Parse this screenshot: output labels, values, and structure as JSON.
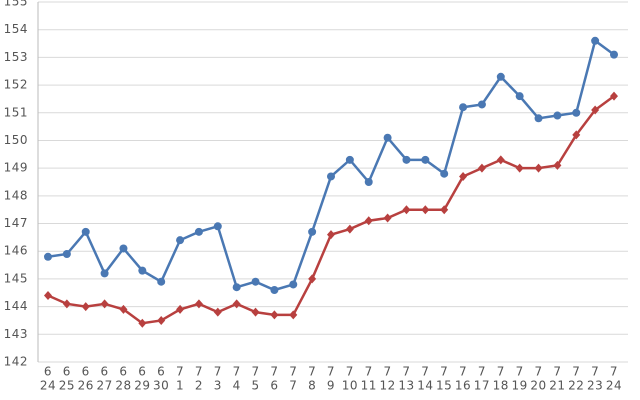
{
  "chart_data": {
    "type": "line",
    "categories": [
      [
        "6",
        "24"
      ],
      [
        "6",
        "25"
      ],
      [
        "6",
        "26"
      ],
      [
        "6",
        "27"
      ],
      [
        "6",
        "28"
      ],
      [
        "6",
        "29"
      ],
      [
        "6",
        "30"
      ],
      [
        "7",
        "1"
      ],
      [
        "7",
        "2"
      ],
      [
        "7",
        "3"
      ],
      [
        "7",
        "4"
      ],
      [
        "7",
        "5"
      ],
      [
        "7",
        "6"
      ],
      [
        "7",
        "7"
      ],
      [
        "7",
        "8"
      ],
      [
        "7",
        "9"
      ],
      [
        "7",
        "10"
      ],
      [
        "7",
        "11"
      ],
      [
        "7",
        "12"
      ],
      [
        "7",
        "13"
      ],
      [
        "7",
        "14"
      ],
      [
        "7",
        "15"
      ],
      [
        "7",
        "16"
      ],
      [
        "7",
        "17"
      ],
      [
        "7",
        "18"
      ],
      [
        "7",
        "19"
      ],
      [
        "7",
        "20"
      ],
      [
        "7",
        "21"
      ],
      [
        "7",
        "22"
      ],
      [
        "7",
        "23"
      ],
      [
        "7",
        "24"
      ]
    ],
    "series": [
      {
        "color": "#4a78b3",
        "marker": "circle",
        "values": [
          145.8,
          145.9,
          146.7,
          145.2,
          146.1,
          145.3,
          144.9,
          146.4,
          146.7,
          146.9,
          144.7,
          144.9,
          144.6,
          144.8,
          146.7,
          148.7,
          149.3,
          148.5,
          150.1,
          149.3,
          149.3,
          148.8,
          151.2,
          151.3,
          152.3,
          151.6,
          150.8,
          150.9,
          151.0,
          153.6,
          153.1
        ]
      },
      {
        "color": "#b8403f",
        "marker": "diamond",
        "values": [
          144.4,
          144.1,
          144.0,
          144.1,
          143.9,
          143.4,
          143.5,
          143.9,
          144.1,
          143.8,
          144.1,
          143.8,
          143.7,
          143.7,
          145.0,
          146.6,
          146.8,
          147.1,
          147.2,
          147.5,
          147.5,
          147.5,
          148.7,
          149.0,
          149.3,
          149.0,
          149.0,
          149.1,
          150.2,
          151.1,
          151.6
        ]
      }
    ],
    "ylim": [
      142,
      155
    ],
    "yticks": [
      142,
      143,
      144,
      145,
      146,
      147,
      148,
      149,
      150,
      151,
      152,
      153,
      154,
      155
    ],
    "grid": true
  }
}
